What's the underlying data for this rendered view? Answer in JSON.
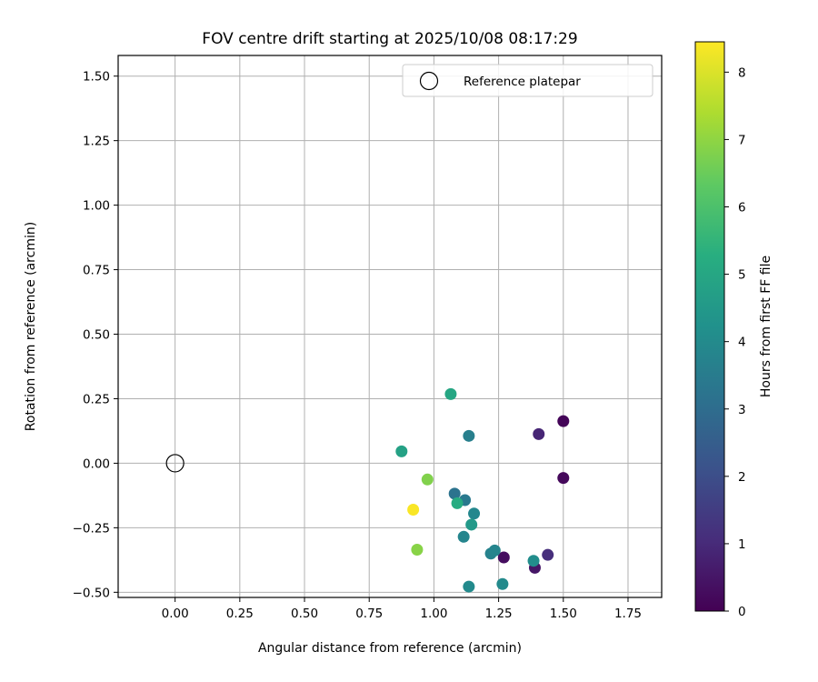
{
  "chart_data": {
    "type": "scatter",
    "title": "FOV centre drift starting at 2025/10/08 08:17:29",
    "xlabel": "Angular distance from reference (arcmin)",
    "ylabel": "Rotation from reference (arcmin)",
    "xlim": [
      -0.22,
      1.88
    ],
    "ylim": [
      -0.52,
      1.58
    ],
    "xticks": [
      "0.00",
      "0.25",
      "0.50",
      "0.75",
      "1.00",
      "1.25",
      "1.50",
      "1.75"
    ],
    "xtick_values": [
      0,
      0.25,
      0.5,
      0.75,
      1.0,
      1.25,
      1.5,
      1.75
    ],
    "yticks": [
      "−0.50",
      "−0.25",
      "0.00",
      "0.25",
      "0.50",
      "0.75",
      "1.00",
      "1.25",
      "1.50"
    ],
    "ytick_values": [
      -0.5,
      -0.25,
      0,
      0.25,
      0.5,
      0.75,
      1.0,
      1.25,
      1.5
    ],
    "grid": true,
    "legend": {
      "placement": "upper-right",
      "entries": [
        {
          "label": "Reference platepar",
          "marker": "open-circle"
        }
      ]
    },
    "reference_point": {
      "x": 0.0,
      "y": 0.0
    },
    "colorbar": {
      "label": "Hours from first FF file",
      "range": [
        0,
        8.45
      ],
      "ticks": [
        "0",
        "1",
        "2",
        "3",
        "4",
        "5",
        "6",
        "7",
        "8"
      ],
      "tick_values": [
        0,
        1,
        2,
        3,
        4,
        5,
        6,
        7,
        8
      ],
      "colormap": "viridis"
    },
    "points": [
      {
        "x": 1.5,
        "y": 0.163,
        "hours": 0.1
      },
      {
        "x": 1.5,
        "y": -0.057,
        "hours": 0.2
      },
      {
        "x": 1.27,
        "y": -0.365,
        "hours": 0.3
      },
      {
        "x": 1.39,
        "y": -0.405,
        "hours": 0.5
      },
      {
        "x": 1.405,
        "y": 0.113,
        "hours": 0.9
      },
      {
        "x": 1.44,
        "y": -0.355,
        "hours": 1.1
      },
      {
        "x": 1.08,
        "y": -0.118,
        "hours": 3.2
      },
      {
        "x": 1.12,
        "y": -0.143,
        "hours": 3.4
      },
      {
        "x": 1.135,
        "y": 0.106,
        "hours": 3.6
      },
      {
        "x": 1.115,
        "y": -0.285,
        "hours": 3.8
      },
      {
        "x": 1.155,
        "y": -0.195,
        "hours": 3.9
      },
      {
        "x": 1.135,
        "y": -0.478,
        "hours": 4.0
      },
      {
        "x": 1.22,
        "y": -0.35,
        "hours": 3.7
      },
      {
        "x": 1.235,
        "y": -0.338,
        "hours": 3.8
      },
      {
        "x": 1.385,
        "y": -0.378,
        "hours": 4.1
      },
      {
        "x": 1.265,
        "y": -0.468,
        "hours": 4.0
      },
      {
        "x": 1.145,
        "y": -0.238,
        "hours": 4.5
      },
      {
        "x": 0.875,
        "y": 0.046,
        "hours": 4.8
      },
      {
        "x": 1.065,
        "y": 0.268,
        "hours": 5.0
      },
      {
        "x": 1.09,
        "y": -0.155,
        "hours": 5.2
      },
      {
        "x": 0.975,
        "y": -0.063,
        "hours": 6.8
      },
      {
        "x": 0.935,
        "y": -0.335,
        "hours": 6.9
      },
      {
        "x": 0.92,
        "y": -0.18,
        "hours": 8.4
      }
    ]
  }
}
